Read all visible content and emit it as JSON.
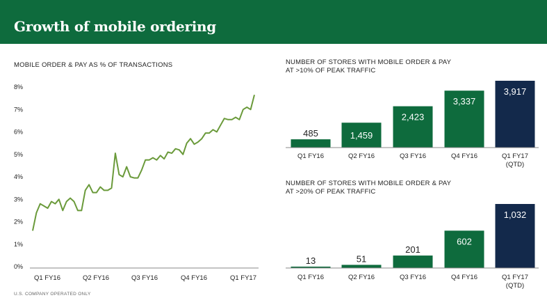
{
  "header": {
    "title": "Growth of mobile ordering"
  },
  "footnote": "U.S. COMPANY OPERATED ONLY",
  "colors": {
    "header_bg": "#0e6b3d",
    "line": "#6a9a3a",
    "bar_green": "#0e6b3d",
    "bar_navy": "#13294b"
  },
  "chart_data": [
    {
      "type": "line",
      "title": "MOBILE ORDER & PAY AS % OF TRANSACTIONS",
      "ytick_labels": [
        "0%",
        "1%",
        "2%",
        "3%",
        "4%",
        "5%",
        "6%",
        "7%",
        "8%"
      ],
      "ylim": [
        0,
        8
      ],
      "xtick_labels": [
        "Q1 FY16",
        "Q2 FY16",
        "Q3 FY16",
        "Q4 FY16",
        "Q1 FY17"
      ],
      "grid": false,
      "series": [
        {
          "values": [
            1.6,
            2.4,
            2.8,
            2.7,
            2.6,
            2.9,
            2.8,
            3.0,
            2.5,
            2.9,
            3.05,
            2.9,
            2.5,
            2.5,
            3.4,
            3.65,
            3.3,
            3.3,
            3.55,
            3.4,
            3.4,
            3.5,
            5.05,
            4.1,
            4.0,
            4.45,
            4.0,
            3.95,
            3.95,
            4.3,
            4.75,
            4.75,
            4.85,
            4.75,
            4.95,
            4.8,
            5.1,
            5.05,
            5.25,
            5.2,
            5.0,
            5.5,
            5.7,
            5.45,
            5.55,
            5.7,
            5.95,
            5.95,
            6.1,
            6.0,
            6.3,
            6.6,
            6.55,
            6.55,
            6.65,
            6.55,
            7.0,
            7.1,
            7.0,
            7.65
          ]
        }
      ]
    },
    {
      "type": "bar",
      "title_line1": "NUMBER OF STORES WITH MOBILE ORDER & PAY",
      "title_line2": "AT >10% OF PEAK TRAFFIC",
      "categories": [
        "Q1 FY16",
        "Q2 FY16",
        "Q3 FY16",
        "Q4 FY16",
        "Q1 FY17"
      ],
      "category_sublabels": [
        "",
        "",
        "",
        "",
        "(QTD)"
      ],
      "values": [
        485,
        1459,
        2423,
        3337,
        3917
      ],
      "value_labels": [
        "485",
        "1,459",
        "2,423",
        "3,337",
        "3,917"
      ],
      "highlight_last": true
    },
    {
      "type": "bar",
      "title_line1": "NUMBER OF STORES WITH MOBILE ORDER & PAY",
      "title_line2": "AT >20% OF PEAK TRAFFIC",
      "categories": [
        "Q1 FY16",
        "Q2 FY16",
        "Q3 FY16",
        "Q4 FY16",
        "Q1 FY17"
      ],
      "category_sublabels": [
        "",
        "",
        "",
        "",
        "(QTD)"
      ],
      "values": [
        13,
        51,
        201,
        602,
        1032
      ],
      "value_labels": [
        "13",
        "51",
        "201",
        "602",
        "1,032"
      ],
      "highlight_last": true
    }
  ]
}
